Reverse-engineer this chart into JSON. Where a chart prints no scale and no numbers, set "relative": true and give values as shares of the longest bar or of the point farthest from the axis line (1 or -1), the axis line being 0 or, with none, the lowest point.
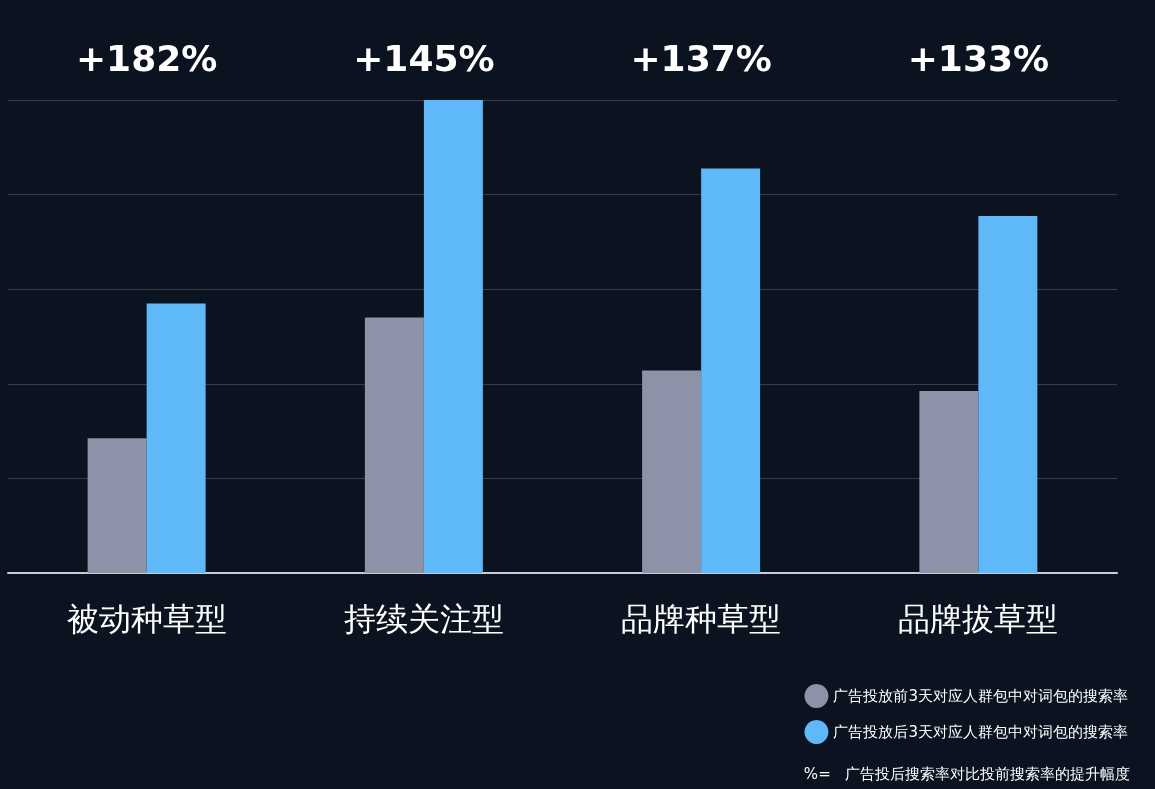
{
  "chart_data": {
    "type": "bar",
    "relative": true,
    "categories": [
      "被动种草型",
      "持续关注型",
      "品牌种草型",
      "品牌拔草型"
    ],
    "series": [
      {
        "name": "广告投放前3天对应人群包中对词包的搜索率",
        "color": "#8d92a8",
        "values": [
          0.285,
          0.54,
          0.428,
          0.385
        ]
      },
      {
        "name": "广告投放后3天对应人群包中对词包的搜索率",
        "color": "#5fb8f8",
        "values": [
          0.57,
          1,
          0.855,
          0.755
        ]
      }
    ],
    "annotations": [
      "+182%",
      "+145%",
      "+137%",
      "+133%",
      "%=   广告投后搜索率对比投前搜索率的提升幅度"
    ],
    "grid": true,
    "legend": "bottom right"
  }
}
